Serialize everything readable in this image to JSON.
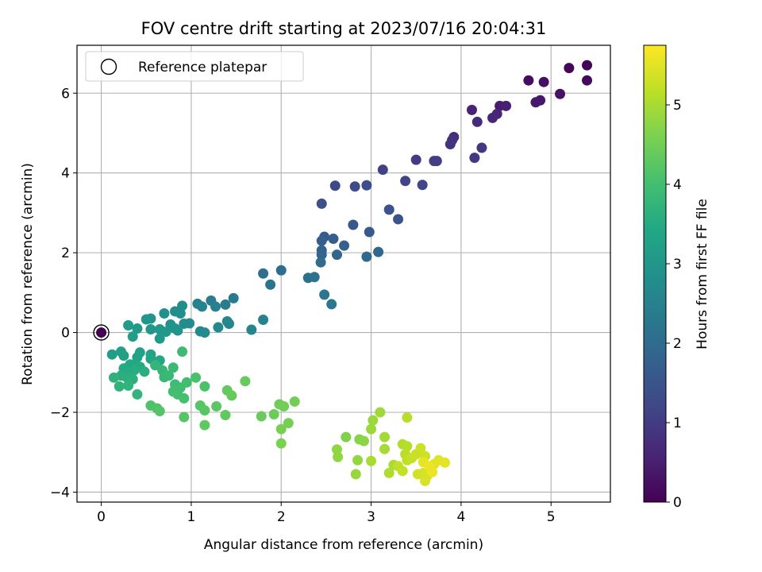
{
  "chart_data": {
    "type": "scatter",
    "title": "FOV centre drift starting at 2023/07/16 20:04:31",
    "xlabel": "Angular distance from reference (arcmin)",
    "ylabel": "Rotation from reference (arcmin)",
    "xlim": [
      -0.27,
      5.66
    ],
    "ylim": [
      -4.25,
      7.2
    ],
    "xticks": [
      0,
      1,
      2,
      3,
      4,
      5
    ],
    "yticks": [
      -4,
      -2,
      0,
      2,
      4,
      6
    ],
    "grid": true,
    "legend": {
      "placement": "upper-left",
      "entries": [
        "Reference platepar"
      ]
    },
    "reference_point": {
      "x": 0,
      "y": 0
    },
    "colorbar": {
      "label": "Hours from first FF file",
      "colormap": "viridis",
      "range": [
        0,
        5.75
      ],
      "ticks": [
        0,
        1,
        2,
        3,
        4,
        5
      ]
    },
    "series": [
      {
        "marker_color_by": "hours",
        "points": [
          [
            5.4,
            6.7,
            0.05
          ],
          [
            5.2,
            6.63,
            0.1
          ],
          [
            5.4,
            6.32,
            0.15
          ],
          [
            4.75,
            6.32,
            0.2
          ],
          [
            4.92,
            6.28,
            0.25
          ],
          [
            5.1,
            5.98,
            0.3
          ],
          [
            4.88,
            5.82,
            0.35
          ],
          [
            4.83,
            5.77,
            0.4
          ],
          [
            4.43,
            5.68,
            0.45
          ],
          [
            4.5,
            5.68,
            0.5
          ],
          [
            4.12,
            5.58,
            0.55
          ],
          [
            4.4,
            5.48,
            0.6
          ],
          [
            4.35,
            5.38,
            0.65
          ],
          [
            4.18,
            5.28,
            0.7
          ],
          [
            3.92,
            4.9,
            0.75
          ],
          [
            3.9,
            4.82,
            0.8
          ],
          [
            3.88,
            4.72,
            0.85
          ],
          [
            4.23,
            4.63,
            0.9
          ],
          [
            4.15,
            4.38,
            0.95
          ],
          [
            3.5,
            4.33,
            1.0
          ],
          [
            3.7,
            4.3,
            1.02
          ],
          [
            3.73,
            4.3,
            1.05
          ],
          [
            3.13,
            4.08,
            1.1
          ],
          [
            3.38,
            3.8,
            1.15
          ],
          [
            3.57,
            3.7,
            1.2
          ],
          [
            2.6,
            3.68,
            1.25
          ],
          [
            2.82,
            3.66,
            1.3
          ],
          [
            2.95,
            3.69,
            1.35
          ],
          [
            2.45,
            3.23,
            1.4
          ],
          [
            3.2,
            3.08,
            1.45
          ],
          [
            3.3,
            2.84,
            1.5
          ],
          [
            2.8,
            2.7,
            1.55
          ],
          [
            2.98,
            2.52,
            1.6
          ],
          [
            2.48,
            2.4,
            1.65
          ],
          [
            2.58,
            2.35,
            1.7
          ],
          [
            2.45,
            2.3,
            1.75
          ],
          [
            2.7,
            2.18,
            1.8
          ],
          [
            2.45,
            2.06,
            1.82
          ],
          [
            2.45,
            1.95,
            1.85
          ],
          [
            2.62,
            1.95,
            1.9
          ],
          [
            3.08,
            2.02,
            1.92
          ],
          [
            2.95,
            1.9,
            1.95
          ],
          [
            2.44,
            1.76,
            2.0
          ],
          [
            2.0,
            1.56,
            2.05
          ],
          [
            1.8,
            1.48,
            2.1
          ],
          [
            2.3,
            1.37,
            2.12
          ],
          [
            2.37,
            1.39,
            2.15
          ],
          [
            1.88,
            1.2,
            2.2
          ],
          [
            2.48,
            0.95,
            2.25
          ],
          [
            2.56,
            0.71,
            2.3
          ],
          [
            1.47,
            0.86,
            2.35
          ],
          [
            1.22,
            0.8,
            2.38
          ],
          [
            1.38,
            0.7,
            2.4
          ],
          [
            1.27,
            0.65,
            2.45
          ],
          [
            1.07,
            0.72,
            2.5
          ],
          [
            1.12,
            0.65,
            2.52
          ],
          [
            1.8,
            0.32,
            2.55
          ],
          [
            1.67,
            0.07,
            2.6
          ],
          [
            1.4,
            0.28,
            2.62
          ],
          [
            1.42,
            0.22,
            2.65
          ],
          [
            1.3,
            0.13,
            2.68
          ],
          [
            1.1,
            0.03,
            2.7
          ],
          [
            1.15,
            0.0,
            2.72
          ],
          [
            0.92,
            0.22,
            2.75
          ],
          [
            0.98,
            0.23,
            2.78
          ],
          [
            0.9,
            0.67,
            2.8
          ],
          [
            0.82,
            0.53,
            2.82
          ],
          [
            0.88,
            0.48,
            2.85
          ],
          [
            0.7,
            0.48,
            2.88
          ],
          [
            0.77,
            0.2,
            2.9
          ],
          [
            0.82,
            0.1,
            2.92
          ],
          [
            0.85,
            0.05,
            2.95
          ],
          [
            0.55,
            0.35,
            2.97
          ],
          [
            0.5,
            0.33,
            3.0
          ],
          [
            0.55,
            0.08,
            3.02
          ],
          [
            0.65,
            0.08,
            3.05
          ],
          [
            0.72,
            0.02,
            3.08
          ],
          [
            0.65,
            -0.15,
            3.1
          ],
          [
            0.4,
            0.1,
            3.12
          ],
          [
            0.3,
            0.18,
            3.15
          ],
          [
            0.35,
            -0.1,
            3.18
          ],
          [
            0.12,
            -0.55,
            3.2
          ],
          [
            0.22,
            -0.48,
            3.22
          ],
          [
            0.25,
            -0.58,
            3.25
          ],
          [
            0.4,
            -0.62,
            3.28
          ],
          [
            0.43,
            -0.5,
            3.3
          ],
          [
            0.55,
            -0.55,
            3.32
          ],
          [
            0.55,
            -0.66,
            3.35
          ],
          [
            0.6,
            -0.75,
            3.38
          ],
          [
            0.65,
            -0.7,
            3.4
          ],
          [
            0.38,
            -0.78,
            3.42
          ],
          [
            0.32,
            -0.8,
            3.45
          ],
          [
            0.43,
            -0.86,
            3.48
          ],
          [
            0.25,
            -0.9,
            3.5
          ],
          [
            0.3,
            -0.98,
            3.52
          ],
          [
            0.37,
            -0.94,
            3.55
          ],
          [
            0.48,
            -0.98,
            3.58
          ],
          [
            0.22,
            -1.08,
            3.6
          ],
          [
            0.28,
            -1.12,
            3.62
          ],
          [
            0.35,
            -1.17,
            3.65
          ],
          [
            0.14,
            -1.13,
            3.68
          ],
          [
            0.2,
            -1.35,
            3.7
          ],
          [
            0.3,
            -1.33,
            3.72
          ],
          [
            0.4,
            -1.55,
            3.75
          ],
          [
            0.6,
            -0.82,
            3.78
          ],
          [
            0.68,
            -0.95,
            3.8
          ],
          [
            0.7,
            -1.12,
            3.82
          ],
          [
            0.75,
            -1.08,
            3.85
          ],
          [
            0.8,
            -0.88,
            3.88
          ],
          [
            0.9,
            -0.48,
            3.9
          ],
          [
            0.82,
            -1.3,
            3.92
          ],
          [
            0.88,
            -1.38,
            3.95
          ],
          [
            0.95,
            -1.25,
            3.98
          ],
          [
            0.8,
            -1.48,
            4.0
          ],
          [
            0.85,
            -1.55,
            4.02
          ],
          [
            0.92,
            -1.65,
            4.05
          ],
          [
            1.05,
            -1.13,
            4.08
          ],
          [
            1.15,
            -1.35,
            4.1
          ],
          [
            0.55,
            -1.83,
            4.12
          ],
          [
            0.62,
            -1.9,
            4.15
          ],
          [
            0.65,
            -1.97,
            4.18
          ],
          [
            0.92,
            -2.12,
            4.2
          ],
          [
            1.1,
            -1.83,
            4.22
          ],
          [
            1.15,
            -1.95,
            4.25
          ],
          [
            1.28,
            -1.85,
            4.28
          ],
          [
            1.15,
            -2.32,
            4.3
          ],
          [
            1.38,
            -2.07,
            4.32
          ],
          [
            1.4,
            -1.45,
            4.35
          ],
          [
            1.45,
            -1.58,
            4.38
          ],
          [
            1.6,
            -1.22,
            4.4
          ],
          [
            1.78,
            -2.1,
            4.42
          ],
          [
            1.92,
            -2.05,
            4.45
          ],
          [
            1.98,
            -1.8,
            4.48
          ],
          [
            2.03,
            -1.85,
            4.5
          ],
          [
            2.15,
            -1.73,
            4.52
          ],
          [
            2.08,
            -2.27,
            4.55
          ],
          [
            2.0,
            -2.42,
            4.58
          ],
          [
            2.0,
            -2.78,
            4.6
          ],
          [
            2.72,
            -2.62,
            4.65
          ],
          [
            2.87,
            -2.68,
            4.7
          ],
          [
            2.92,
            -2.72,
            4.75
          ],
          [
            2.62,
            -2.93,
            4.78
          ],
          [
            2.63,
            -3.12,
            4.8
          ],
          [
            2.85,
            -3.2,
            4.82
          ],
          [
            2.83,
            -3.55,
            4.85
          ],
          [
            3.0,
            -2.42,
            4.88
          ],
          [
            3.02,
            -2.2,
            4.9
          ],
          [
            3.1,
            -2.0,
            4.92
          ],
          [
            3.15,
            -2.62,
            4.95
          ],
          [
            3.15,
            -2.92,
            4.98
          ],
          [
            3.0,
            -3.22,
            5.0
          ],
          [
            3.25,
            -3.32,
            5.02
          ],
          [
            3.2,
            -3.52,
            5.05
          ],
          [
            3.35,
            -2.8,
            5.08
          ],
          [
            3.4,
            -2.85,
            5.1
          ],
          [
            3.4,
            -2.13,
            5.12
          ],
          [
            3.38,
            -3.05,
            5.15
          ],
          [
            3.4,
            -3.2,
            5.18
          ],
          [
            3.3,
            -3.35,
            5.2
          ],
          [
            3.35,
            -3.47,
            5.22
          ],
          [
            3.45,
            -3.15,
            5.25
          ],
          [
            3.5,
            -3.05,
            5.28
          ],
          [
            3.55,
            -2.9,
            5.3
          ],
          [
            3.6,
            -3.1,
            5.32
          ],
          [
            3.52,
            -3.55,
            5.35
          ],
          [
            3.58,
            -3.52,
            5.38
          ],
          [
            3.62,
            -3.6,
            5.4
          ],
          [
            3.6,
            -3.72,
            5.42
          ],
          [
            3.65,
            -3.45,
            5.45
          ],
          [
            3.7,
            -3.3,
            5.48
          ],
          [
            3.75,
            -3.2,
            5.5
          ],
          [
            3.82,
            -3.26,
            5.52
          ],
          [
            3.58,
            -3.25,
            5.55
          ],
          [
            3.65,
            -3.35,
            5.58
          ],
          [
            3.68,
            -3.5,
            5.6
          ]
        ]
      }
    ]
  }
}
